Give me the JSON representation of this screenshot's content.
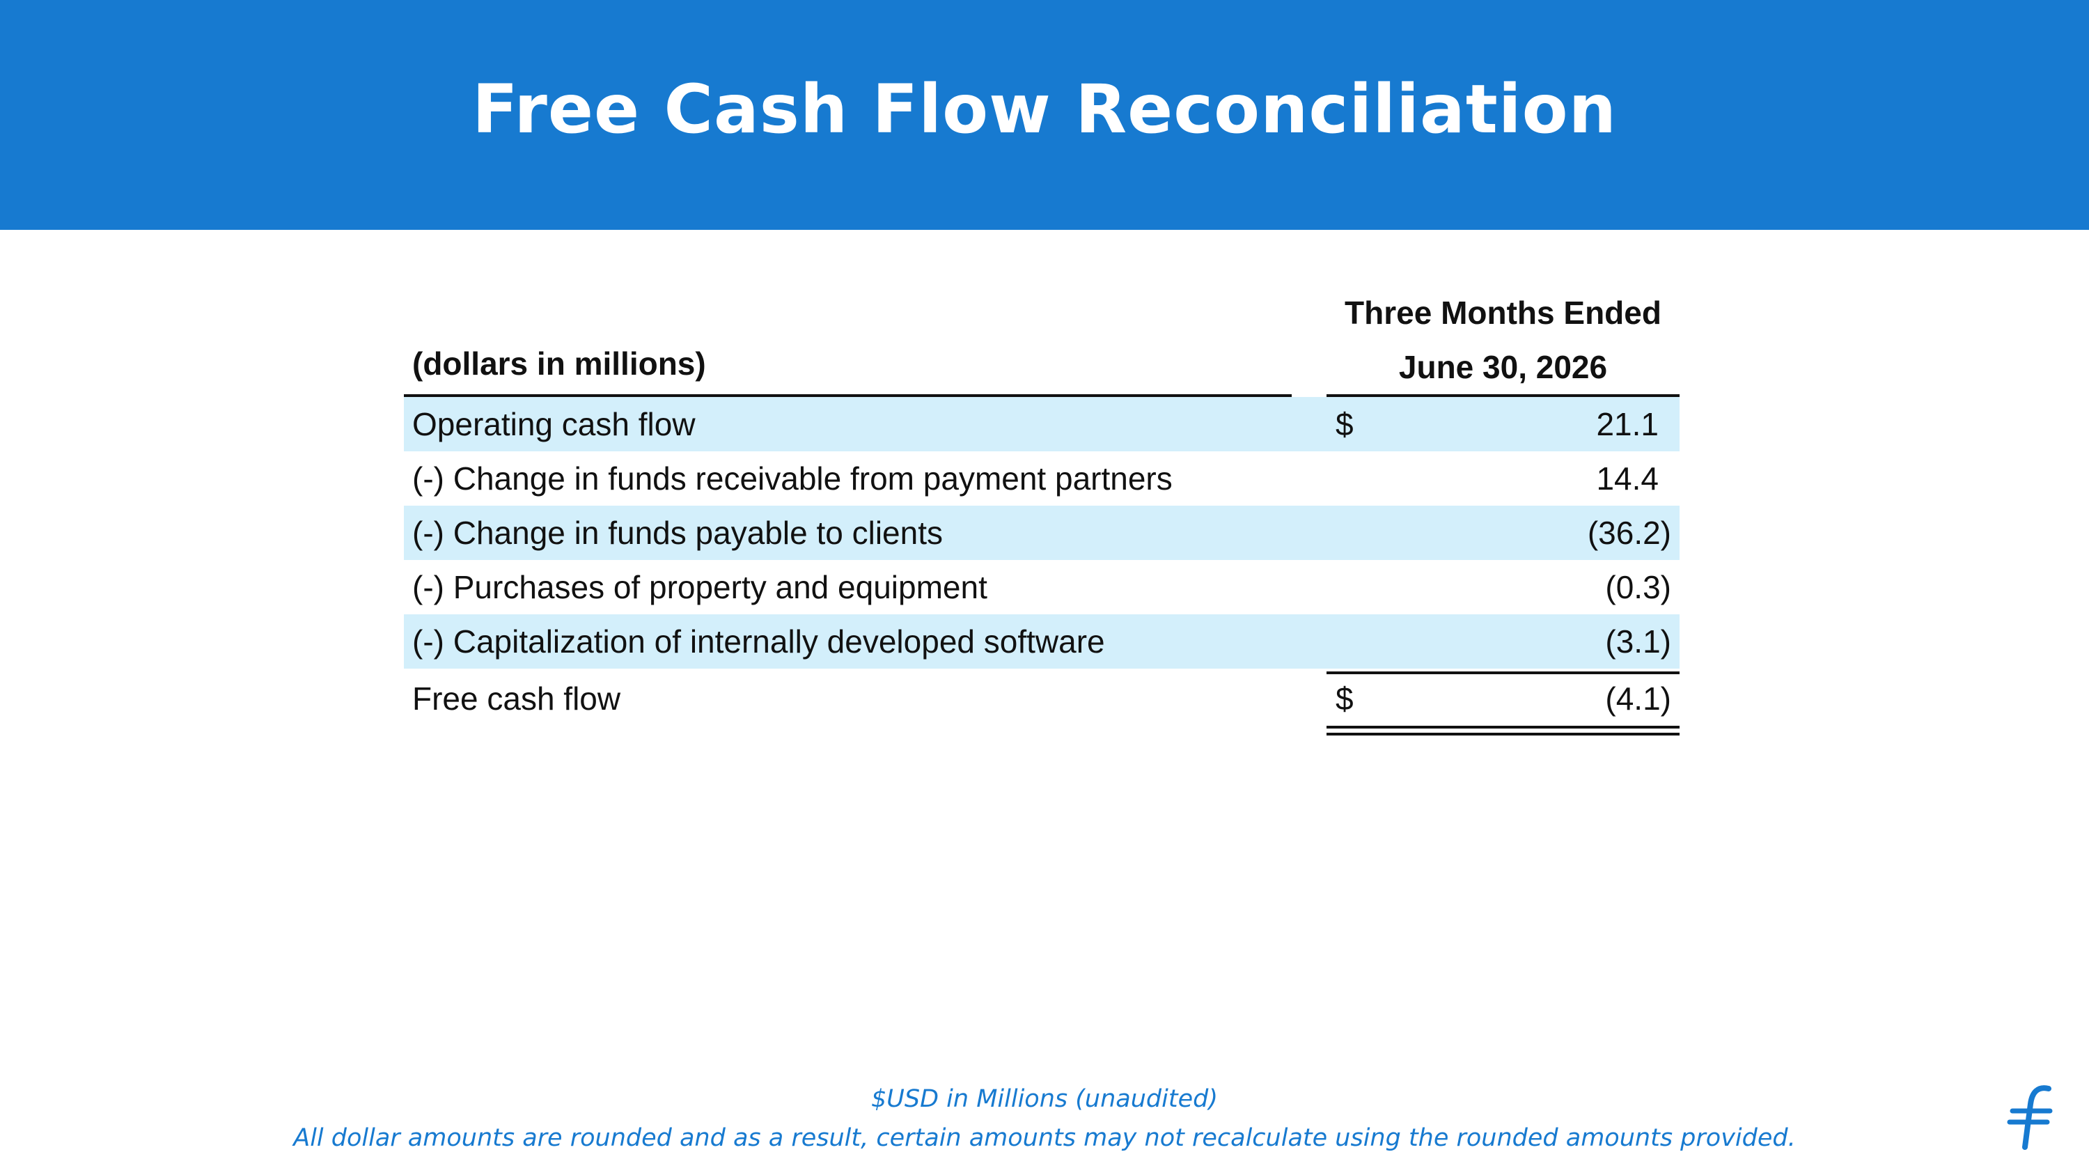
{
  "header": {
    "title": "Free Cash Flow Reconciliation"
  },
  "table": {
    "label_header": "(dollars in millions)",
    "period_header_line1": "Three Months Ended",
    "period_header_line2": "June 30, 2026",
    "rows": [
      {
        "label": "Operating cash flow",
        "currency": "$",
        "value": "21.1"
      },
      {
        "label": "(-) Change in funds receivable from payment partners",
        "currency": "",
        "value": "14.4"
      },
      {
        "label": "(-) Change in funds payable to clients",
        "currency": "",
        "value": "(36.2)"
      },
      {
        "label": "(-) Purchases of property and equipment",
        "currency": "",
        "value": "(0.3)"
      },
      {
        "label": "(-) Capitalization of internally developed software",
        "currency": "",
        "value": "(3.1)"
      }
    ],
    "total": {
      "label": "Free cash flow",
      "currency": "$",
      "value": "(4.1)"
    }
  },
  "footer": {
    "line1": "$USD in Millions (unaudited)",
    "line2": "All dollar amounts are rounded and as a result, certain amounts may not recalculate using the rounded amounts provided."
  },
  "colors": {
    "brand_blue": "#177ad0",
    "row_shade": "#d3effb"
  },
  "logo": {
    "icon": "flywire-f-logo-icon"
  }
}
